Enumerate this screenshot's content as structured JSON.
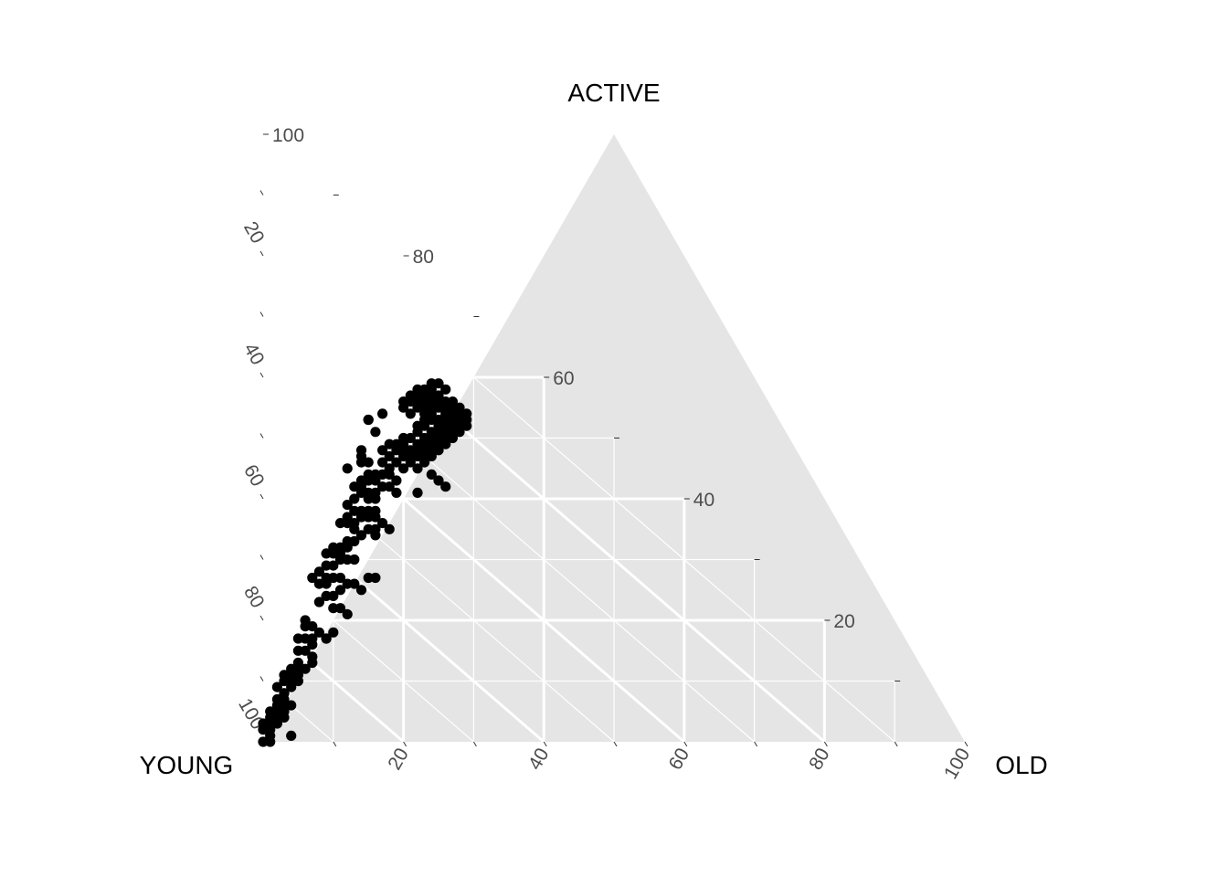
{
  "chart_data": {
    "type": "scatter",
    "subtype": "ternary",
    "axis_titles": {
      "top": "ACTIVE",
      "left": "YOUNG",
      "right": "OLD"
    },
    "tick_values": [
      20,
      40,
      60,
      80,
      100
    ],
    "tick_labels": [
      "20",
      "40",
      "60",
      "80",
      "100"
    ],
    "grid": true,
    "colors": {
      "background": "#e5e5e5",
      "grid": "#ffffff",
      "point": "#000000",
      "tick_text": "#4d4d4d"
    },
    "point_fields": [
      "OLD",
      "ACTIVE"
    ],
    "points": [
      [
        24,
        59
      ],
      [
        25,
        59
      ],
      [
        24,
        58
      ],
      [
        23,
        58
      ],
      [
        24,
        57
      ],
      [
        22,
        58
      ],
      [
        23,
        57
      ],
      [
        26,
        58
      ],
      [
        22,
        57
      ],
      [
        25,
        57
      ],
      [
        21,
        57
      ],
      [
        23,
        56
      ],
      [
        24,
        56
      ],
      [
        20,
        56
      ],
      [
        21,
        56
      ],
      [
        22,
        56
      ],
      [
        25,
        56
      ],
      [
        26,
        56
      ],
      [
        27,
        56
      ],
      [
        28,
        55
      ],
      [
        20,
        55
      ],
      [
        22,
        55
      ],
      [
        23,
        55
      ],
      [
        24,
        55
      ],
      [
        25,
        55
      ],
      [
        26,
        55
      ],
      [
        27,
        55
      ],
      [
        21,
        54
      ],
      [
        23,
        54
      ],
      [
        24,
        54
      ],
      [
        26,
        54
      ],
      [
        27,
        54
      ],
      [
        28,
        54
      ],
      [
        29,
        54
      ],
      [
        25,
        53
      ],
      [
        26,
        53
      ],
      [
        27,
        53
      ],
      [
        28,
        53
      ],
      [
        29,
        53
      ],
      [
        24,
        53
      ],
      [
        23,
        53
      ],
      [
        25,
        52
      ],
      [
        26,
        52
      ],
      [
        27,
        52
      ],
      [
        28,
        52
      ],
      [
        29,
        52
      ],
      [
        23,
        52
      ],
      [
        22,
        52
      ],
      [
        24,
        51
      ],
      [
        25,
        51
      ],
      [
        26,
        51
      ],
      [
        27,
        51
      ],
      [
        28,
        51
      ],
      [
        22,
        51
      ],
      [
        23,
        50
      ],
      [
        24,
        50
      ],
      [
        25,
        50
      ],
      [
        26,
        50
      ],
      [
        27,
        50
      ],
      [
        21,
        50
      ],
      [
        20,
        50
      ],
      [
        22,
        49
      ],
      [
        23,
        49
      ],
      [
        24,
        49
      ],
      [
        25,
        49
      ],
      [
        26,
        49
      ],
      [
        19,
        49
      ],
      [
        20,
        49
      ],
      [
        18,
        49
      ],
      [
        21,
        48
      ],
      [
        22,
        48
      ],
      [
        23,
        48
      ],
      [
        24,
        48
      ],
      [
        25,
        48
      ],
      [
        19,
        48
      ],
      [
        20,
        48
      ],
      [
        17,
        48
      ],
      [
        21,
        47
      ],
      [
        22,
        47
      ],
      [
        23,
        47
      ],
      [
        24,
        47
      ],
      [
        20,
        47
      ],
      [
        18,
        47
      ],
      [
        19,
        46
      ],
      [
        21,
        46
      ],
      [
        23,
        46
      ],
      [
        17,
        46
      ],
      [
        18,
        45
      ],
      [
        20,
        45
      ],
      [
        22,
        45
      ],
      [
        24,
        44
      ],
      [
        19,
        43
      ],
      [
        25,
        43
      ],
      [
        26,
        42
      ],
      [
        15,
        53
      ],
      [
        15,
        53
      ],
      [
        17,
        54
      ],
      [
        16,
        51
      ],
      [
        14,
        47
      ],
      [
        12,
        45
      ],
      [
        14,
        48
      ],
      [
        14,
        46
      ],
      [
        15,
        46
      ],
      [
        15,
        44
      ],
      [
        16,
        44
      ],
      [
        17,
        44
      ],
      [
        18,
        44
      ],
      [
        14,
        43
      ],
      [
        15,
        43
      ],
      [
        16,
        43
      ],
      [
        17,
        42
      ],
      [
        18,
        42
      ],
      [
        13,
        42
      ],
      [
        14,
        42
      ],
      [
        16,
        41
      ],
      [
        19,
        41
      ],
      [
        22,
        41
      ],
      [
        15,
        41
      ],
      [
        14,
        41
      ],
      [
        13,
        40
      ],
      [
        15,
        40
      ],
      [
        16,
        40
      ],
      [
        15,
        38
      ],
      [
        16,
        38
      ],
      [
        14,
        38
      ],
      [
        12,
        39
      ],
      [
        13,
        38
      ],
      [
        12,
        37
      ],
      [
        14,
        37
      ],
      [
        15,
        37
      ],
      [
        16,
        37
      ],
      [
        17,
        36
      ],
      [
        18,
        35
      ],
      [
        12,
        36
      ],
      [
        13,
        36
      ],
      [
        11,
        36
      ],
      [
        13,
        35
      ],
      [
        15,
        35
      ],
      [
        16,
        35
      ],
      [
        14,
        34
      ],
      [
        16,
        34
      ],
      [
        12,
        33
      ],
      [
        13,
        33
      ],
      [
        12,
        32
      ],
      [
        10,
        32
      ],
      [
        11,
        32
      ],
      [
        10,
        31
      ],
      [
        11,
        31
      ],
      [
        9,
        31
      ],
      [
        11,
        30
      ],
      [
        12,
        30
      ],
      [
        13,
        30
      ],
      [
        15,
        27
      ],
      [
        16,
        27
      ],
      [
        9,
        29
      ],
      [
        10,
        29
      ],
      [
        8,
        28
      ],
      [
        9,
        27
      ],
      [
        10,
        27
      ],
      [
        11,
        27
      ],
      [
        12,
        26
      ],
      [
        13,
        26
      ],
      [
        14,
        25
      ],
      [
        7,
        27
      ],
      [
        8,
        26
      ],
      [
        9,
        26
      ],
      [
        11,
        25
      ],
      [
        10,
        24
      ],
      [
        9,
        24
      ],
      [
        8,
        23
      ],
      [
        10,
        22
      ],
      [
        11,
        22
      ],
      [
        12,
        21
      ],
      [
        6,
        20
      ],
      [
        6,
        19
      ],
      [
        7,
        19
      ],
      [
        8,
        18
      ],
      [
        9,
        17
      ],
      [
        9,
        17
      ],
      [
        10,
        18
      ],
      [
        5,
        17
      ],
      [
        6,
        17
      ],
      [
        7,
        17
      ],
      [
        7,
        16
      ],
      [
        5,
        15
      ],
      [
        6,
        15
      ],
      [
        7,
        14
      ],
      [
        7,
        13
      ],
      [
        4,
        12
      ],
      [
        5,
        13
      ],
      [
        5,
        12
      ],
      [
        6,
        12
      ],
      [
        5,
        11
      ],
      [
        4,
        11
      ],
      [
        3,
        11
      ],
      [
        5,
        10
      ],
      [
        3,
        10
      ],
      [
        4,
        10
      ],
      [
        4,
        9
      ],
      [
        2,
        9
      ],
      [
        3,
        8
      ],
      [
        3,
        8
      ],
      [
        2,
        7
      ],
      [
        3,
        7
      ],
      [
        2,
        6
      ],
      [
        3,
        6
      ],
      [
        4,
        6
      ],
      [
        2,
        5
      ],
      [
        3,
        5
      ],
      [
        1,
        5
      ],
      [
        2,
        4
      ],
      [
        3,
        4
      ],
      [
        1,
        4
      ],
      [
        2,
        3
      ],
      [
        1,
        3
      ],
      [
        0,
        3
      ],
      [
        1,
        2
      ],
      [
        0,
        2
      ],
      [
        1,
        1
      ],
      [
        4,
        1
      ],
      [
        0,
        0
      ],
      [
        1,
        0
      ]
    ]
  }
}
